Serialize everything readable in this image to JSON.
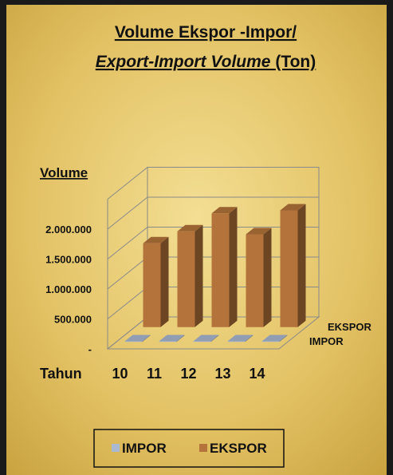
{
  "chart_data": {
    "type": "bar3d",
    "title": "Volume Ekspor -Impor/",
    "subtitle": [
      "Export-Import Volume",
      "(Ton)"
    ],
    "y_label": "Volume",
    "x_label": "Tahun",
    "categories": [
      "10",
      "11",
      "12",
      "13",
      "14"
    ],
    "series": [
      {
        "name": "IMPOR",
        "color": "#a9b9d2",
        "values": [
          10000,
          10000,
          10000,
          10000,
          10000
        ]
      },
      {
        "name": "EKSPOR",
        "color": "#b4733a",
        "values": [
          1400000,
          1600000,
          1900000,
          1550000,
          1950000
        ]
      }
    ],
    "ylim": [
      0,
      2500000
    ],
    "yticks": [
      {
        "value": 0,
        "label": "-"
      },
      {
        "value": 500000,
        "label": "500.000"
      },
      {
        "value": 1000000,
        "label": "1.000.000"
      },
      {
        "value": 1500000,
        "label": "1.500.000"
      },
      {
        "value": 2000000,
        "label": "2.000.000"
      }
    ],
    "grid": true
  }
}
